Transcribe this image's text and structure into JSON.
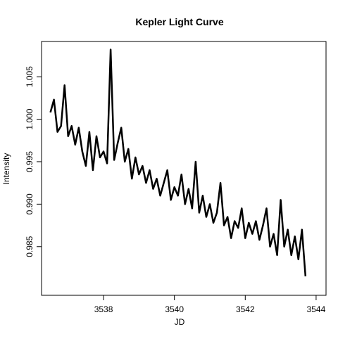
{
  "chart_data": {
    "type": "line",
    "title": "Kepler Light Curve",
    "x_label": "JD",
    "y_label": "Intensity",
    "x": [
      3536.5,
      3536.6,
      3536.7,
      3536.8,
      3536.9,
      3537.0,
      3537.1,
      3537.2,
      3537.3,
      3537.4,
      3537.5,
      3537.6,
      3537.7,
      3537.8,
      3537.9,
      3538.0,
      3538.1,
      3538.2,
      3538.3,
      3538.4,
      3538.5,
      3538.6,
      3538.7,
      3538.8,
      3538.9,
      3539.0,
      3539.1,
      3539.2,
      3539.3,
      3539.4,
      3539.5,
      3539.6,
      3539.7,
      3539.8,
      3539.9,
      3540.0,
      3540.1,
      3540.2,
      3540.3,
      3540.4,
      3540.5,
      3540.6,
      3540.7,
      3540.8,
      3540.9,
      3541.0,
      3541.1,
      3541.2,
      3541.3,
      3541.4,
      3541.5,
      3541.6,
      3541.7,
      3541.8,
      3541.9,
      3542.0,
      3542.1,
      3542.2,
      3542.3,
      3542.4,
      3542.5,
      3542.6,
      3542.7,
      3542.8,
      3542.9,
      3543.0,
      3543.1,
      3543.2,
      3543.3,
      3543.4,
      3543.5,
      3543.6,
      3543.7
    ],
    "series": [
      {
        "name": "Intensity",
        "color": "#000000",
        "values": [
          1.0008,
          1.0023,
          0.9985,
          0.9992,
          1.004,
          0.998,
          0.9992,
          0.997,
          0.999,
          0.9962,
          0.9945,
          0.9985,
          0.994,
          0.998,
          0.9955,
          0.9962,
          0.9948,
          1.0082,
          0.9952,
          0.9972,
          0.999,
          0.995,
          0.9965,
          0.993,
          0.9955,
          0.9935,
          0.9945,
          0.9925,
          0.994,
          0.9918,
          0.993,
          0.991,
          0.9925,
          0.994,
          0.9905,
          0.992,
          0.991,
          0.9935,
          0.99,
          0.9918,
          0.9895,
          0.995,
          0.989,
          0.991,
          0.9885,
          0.99,
          0.9878,
          0.989,
          0.9925,
          0.9875,
          0.9885,
          0.986,
          0.988,
          0.9872,
          0.9895,
          0.986,
          0.9878,
          0.9865,
          0.988,
          0.9858,
          0.9875,
          0.9895,
          0.985,
          0.9865,
          0.984,
          0.9905,
          0.985,
          0.987,
          0.984,
          0.9862,
          0.9835,
          0.987,
          0.9815
        ]
      }
    ],
    "xlim": [
      3536.25,
      3544.28
    ],
    "ylim": [
      0.97927,
      1.00915
    ],
    "xticks": [
      3538,
      3540,
      3542,
      3544
    ],
    "yticks": [
      0.985,
      {
        "value": 0.99,
        "label": "0.990"
      },
      0.995,
      {
        "value": 1,
        "label": "1.000"
      },
      1.005
    ]
  }
}
